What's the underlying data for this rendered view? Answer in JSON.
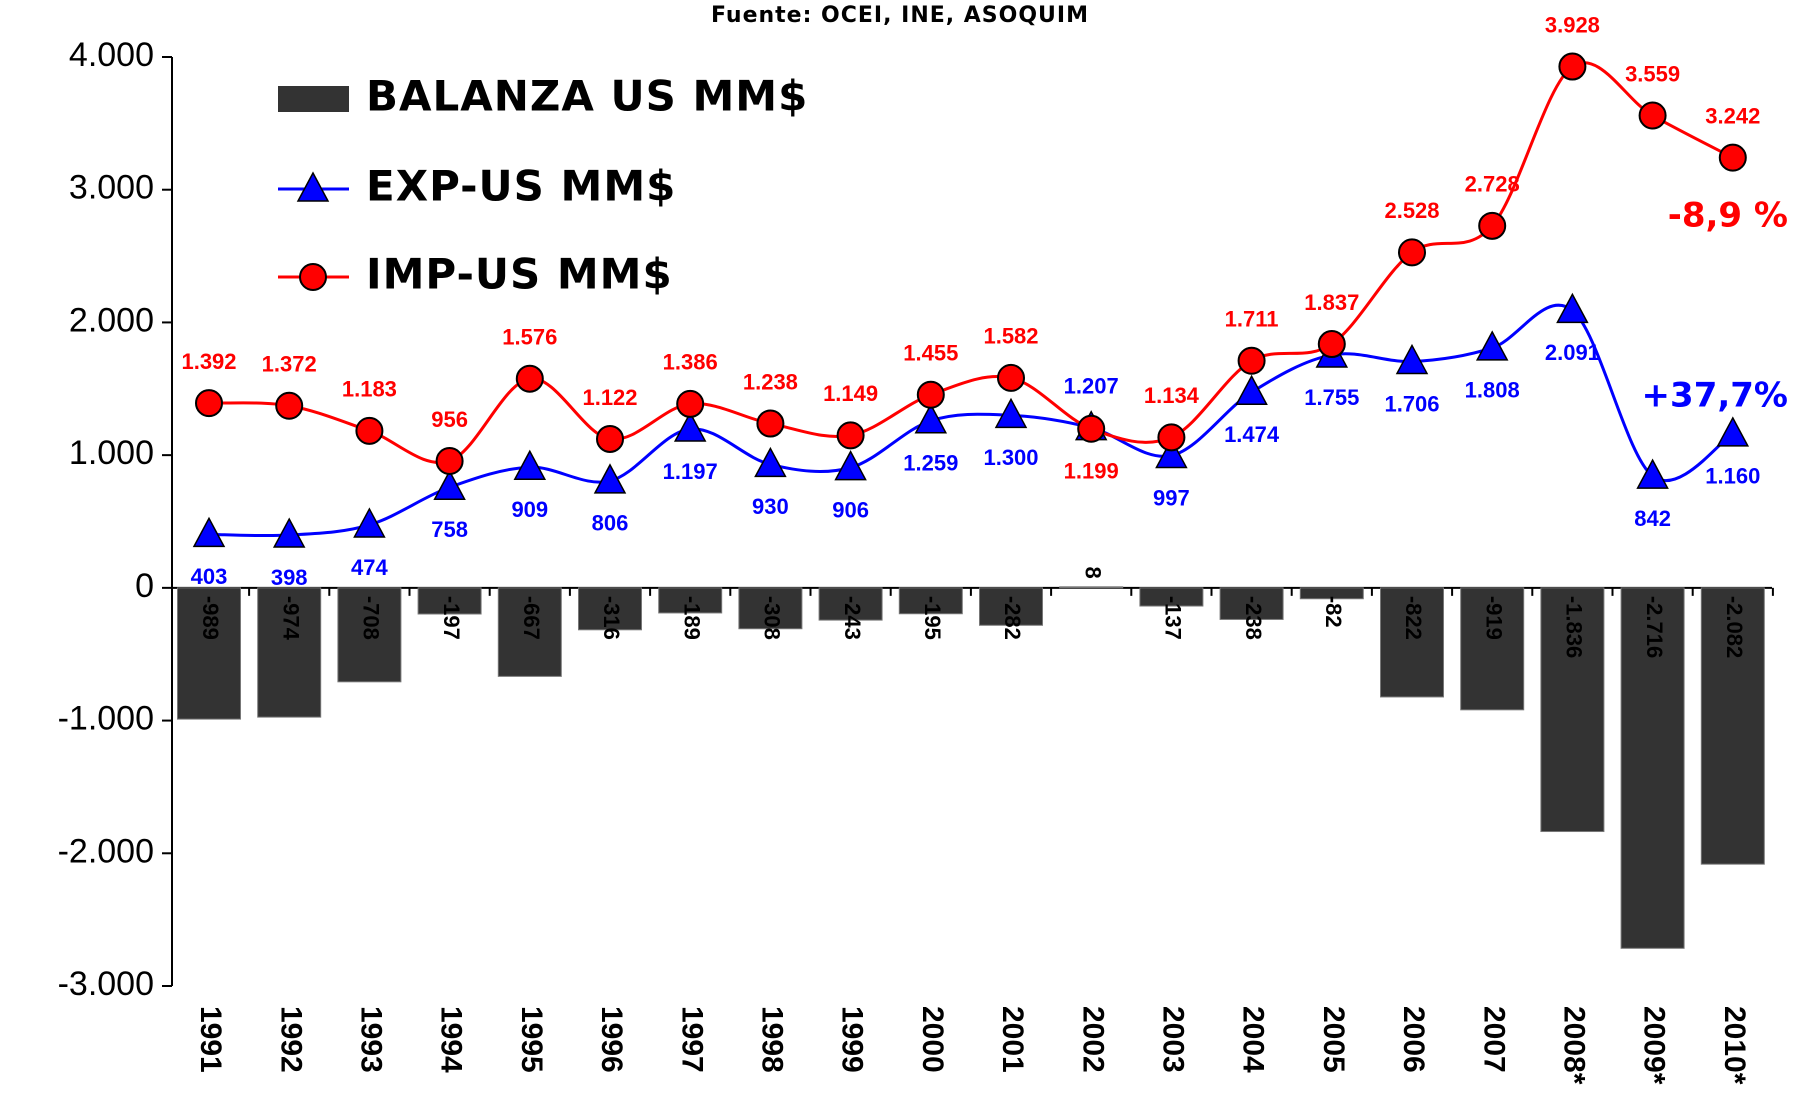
{
  "chart_data": {
    "type": "bar_line",
    "title": "Fuente: OCEI, INE, ASOQUIM",
    "categories": [
      "1991",
      "1992",
      "1993",
      "1994",
      "1995",
      "1996",
      "1997",
      "1998",
      "1999",
      "2000",
      "2001",
      "2002",
      "2003",
      "2004",
      "2005",
      "2006",
      "2007",
      "2008*",
      "2009*",
      "2010*"
    ],
    "series": [
      {
        "name": "BALANZA US MM$",
        "type": "bar",
        "color": "#333333",
        "values": [
          -989,
          -974,
          -708,
          -197,
          -667,
          -316,
          -189,
          -308,
          -243,
          -195,
          -282,
          8,
          -137,
          -238,
          -82,
          -822,
          -919,
          -1836,
          -2716,
          -2082
        ],
        "value_labels": [
          "-989",
          "-974",
          "-708",
          "-197",
          "-667",
          "-316",
          "-189",
          "-308",
          "-243",
          "-195",
          "-282",
          "8",
          "-137",
          "-238",
          "-82",
          "-822",
          "-919",
          "-1.836",
          "-2.716",
          "-2.082"
        ]
      },
      {
        "name": "EXP-US MM$",
        "type": "line",
        "marker": "triangle",
        "color": "#0000ff",
        "values": [
          403,
          398,
          474,
          758,
          909,
          806,
          1197,
          930,
          906,
          1259,
          1300,
          1207,
          997,
          1474,
          1755,
          1706,
          1808,
          2091,
          842,
          1160
        ],
        "value_labels": [
          "403",
          "398",
          "474",
          "758",
          "909",
          "806",
          "1.197",
          "930",
          "906",
          "1.259",
          "1.300",
          "1.207",
          "997",
          "1.474",
          "1.755",
          "1.706",
          "1.808",
          "2.091",
          "842",
          "1.160"
        ]
      },
      {
        "name": "IMP-US MM$",
        "type": "line",
        "marker": "circle",
        "color": "#ff0000",
        "values": [
          1392,
          1372,
          1183,
          956,
          1576,
          1122,
          1386,
          1238,
          1149,
          1455,
          1582,
          1199,
          1134,
          1711,
          1837,
          2528,
          2728,
          3928,
          3559,
          3242
        ],
        "value_labels": [
          "1.392",
          "1.372",
          "1.183",
          "956",
          "1.576",
          "1.122",
          "1.386",
          "1.238",
          "1.149",
          "1.455",
          "1.582",
          "1.199",
          "1.134",
          "1.711",
          "1.837",
          "2.528",
          "2.728",
          "3.928",
          "3.559",
          "3.242"
        ]
      }
    ],
    "annotations": [
      {
        "text": "-8,9 %",
        "color": "#ff0000"
      },
      {
        "text": "+37,7%",
        "color": "#0000ff"
      }
    ],
    "ylim": [
      -3000,
      4000
    ],
    "yticks": [
      {
        "value": -3000,
        "label": "-3.000"
      },
      {
        "value": -2000,
        "label": "-2.000"
      },
      {
        "value": -1000,
        "label": "-1.000"
      },
      0,
      {
        "value": 1000,
        "label": "1.000"
      },
      {
        "value": 2000,
        "label": "2.000"
      },
      {
        "value": 3000,
        "label": "3.000"
      },
      {
        "value": 4000,
        "label": "4.000"
      }
    ],
    "legend": "top-left",
    "grid": false
  }
}
